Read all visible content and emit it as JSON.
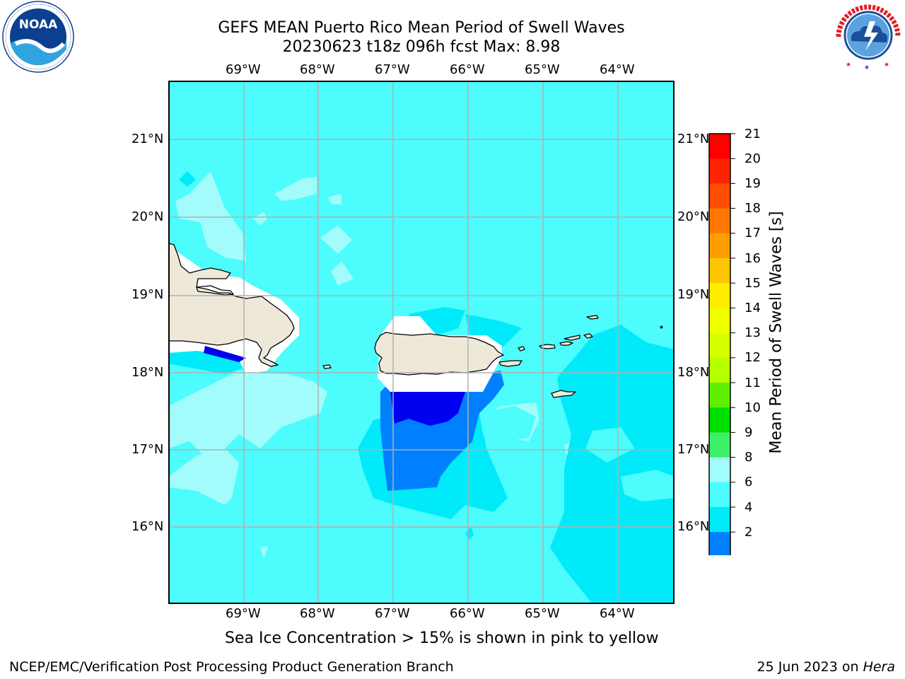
{
  "header": {
    "title_line1": "GEFS MEAN Puerto Rico Mean Period of Swell Waves",
    "title_line2": "20230623 t18z 096h fcst   Max: 8.98"
  },
  "logos": {
    "left": {
      "icon": "noaa-logo-icon",
      "text": "NOAA",
      "ring_text": "NATIONAL OCEANIC AND ATMOSPHERIC ADMINISTRATION · U.S. DEPARTMENT OF COMMERCE",
      "colors": {
        "blue": "#0b3f8f",
        "light": "#2fa4e0"
      }
    },
    "right": {
      "icon": "nws-logo-icon",
      "ring_text": "NATIONAL WEATHER SERVICE",
      "colors": {
        "red": "#e41e25",
        "blue": "#1b4f9c"
      }
    }
  },
  "map": {
    "lon_labels": [
      "69°W",
      "68°W",
      "67°W",
      "66°W",
      "65°W",
      "64°W"
    ],
    "lat_labels": [
      "21°N",
      "20°N",
      "19°N",
      "18°N",
      "17°N",
      "16°N"
    ],
    "background_color": "#4dfcfc",
    "land_color": "#ede8d8",
    "gridline_color": "#b0b0b0"
  },
  "colorbar": {
    "title": "Mean Period of Swell Waves [s]",
    "ticks": [
      "21",
      "20",
      "19",
      "18",
      "17",
      "16",
      "15",
      "14",
      "13",
      "12",
      "11",
      "10",
      "9",
      "8",
      "6",
      "4",
      "2"
    ],
    "colors": [
      "#ff0000",
      "#ff2400",
      "#ff4e00",
      "#ff7800",
      "#ff9e00",
      "#ffc400",
      "#ffec00",
      "#f0ff00",
      "#d6ff00",
      "#b8ff00",
      "#5ef000",
      "#00e000",
      "#3ef065",
      "#a2fcfc",
      "#4dfcfc",
      "#00eafa",
      "#0080ff",
      "#0000f0"
    ],
    "extend_color": "#0000f0"
  },
  "footer": {
    "note": "Sea Ice Concentration > 15% is shown in pink to yellow",
    "left": "NCEP/EMC/Verification Post Processing Product Generation Branch",
    "right_prefix": "25 Jun 2023 on ",
    "right_machine": "Hera"
  }
}
